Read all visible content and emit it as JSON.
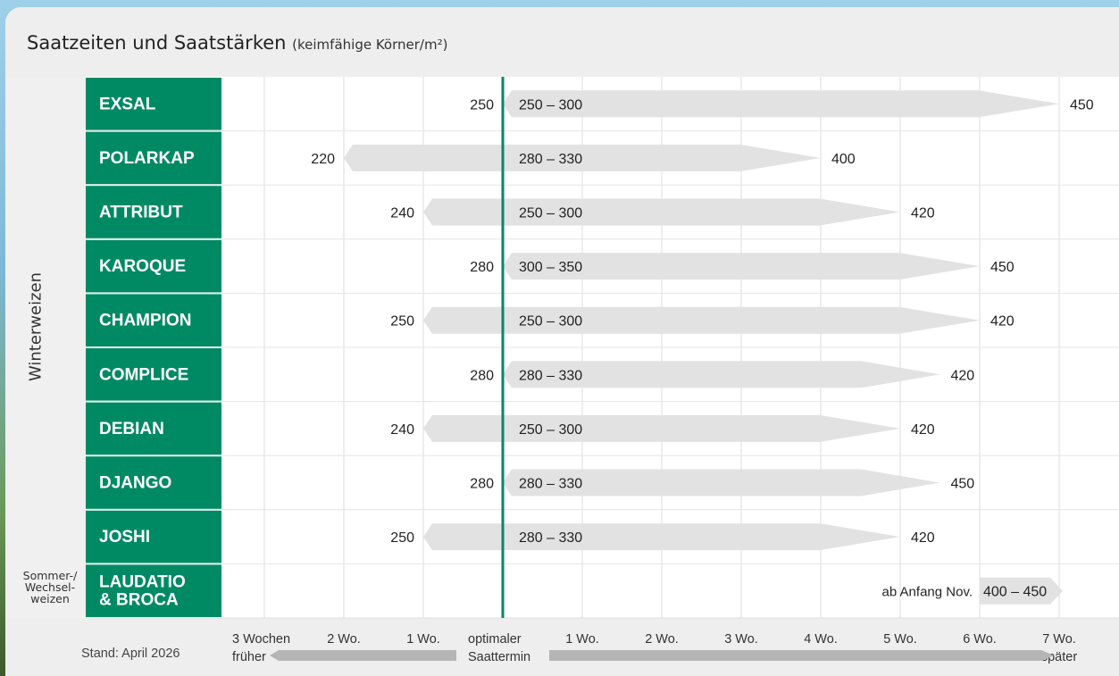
{
  "title": "Saatzeiten und Saatstärken",
  "subtitle": "(keimfähige Körner/m²)",
  "group_labels": {
    "winter": "Winterweizen",
    "sommer": "Sommer-/\nWechsel-\nweizen"
  },
  "stand": "Stand: April 2026",
  "colors": {
    "variety_box": "#008a64",
    "optimal_line": "#008a64",
    "range_bar": "#e2e2e2",
    "axis_arrow": "#b5b5b5",
    "title_bar": "#eeeeee",
    "gridline": "#dcdcdc"
  },
  "chart_data": {
    "type": "bar",
    "description_axis_unit": "Wochen relativ zum optimalen Saattermin",
    "x_ticks": [
      {
        "value": -3,
        "label": "3 Wochen\nfrüher"
      },
      {
        "value": -2,
        "label": "2 Wo."
      },
      {
        "value": -1,
        "label": "1 Wo."
      },
      {
        "value": 0,
        "label": "optimaler\nSaattermin"
      },
      {
        "value": 1,
        "label": "1 Wo."
      },
      {
        "value": 2,
        "label": "2 Wo."
      },
      {
        "value": 3,
        "label": "3 Wo."
      },
      {
        "value": 4,
        "label": "4 Wo."
      },
      {
        "value": 5,
        "label": "5 Wo."
      },
      {
        "value": 6,
        "label": "6 Wo."
      },
      {
        "value": 7,
        "label": "7 Wo.\nspäter"
      }
    ],
    "xlim": [
      -3.5,
      7.5
    ],
    "rows": [
      {
        "name": "EXSAL",
        "start": 0,
        "end": 7,
        "start_label": "250",
        "mid_label": "250 – 300",
        "end_label": "450"
      },
      {
        "name": "POLARKAP",
        "start": -2,
        "end": 4,
        "start_label": "220",
        "mid_label": "280 – 330",
        "end_label": "400"
      },
      {
        "name": "ATTRIBUT",
        "start": -1,
        "end": 5,
        "start_label": "240",
        "mid_label": "250 – 300",
        "end_label": "420"
      },
      {
        "name": "KAROQUE",
        "start": 0,
        "end": 6,
        "start_label": "280",
        "mid_label": "300 – 350",
        "end_label": "450"
      },
      {
        "name": "CHAMPION",
        "start": -1,
        "end": 6,
        "start_label": "250",
        "mid_label": "250 – 300",
        "end_label": "420"
      },
      {
        "name": "COMPLICE",
        "start": 0,
        "end": 5.5,
        "start_label": "280",
        "mid_label": "280 – 330",
        "end_label": "420"
      },
      {
        "name": "DEBIAN",
        "start": -1,
        "end": 5,
        "start_label": "240",
        "mid_label": "250 – 300",
        "end_label": "420"
      },
      {
        "name": "DJANGO",
        "start": 0,
        "end": 5.5,
        "start_label": "280",
        "mid_label": "280 – 330",
        "end_label": "450"
      },
      {
        "name": "JOSHI",
        "start": -1,
        "end": 5,
        "start_label": "250",
        "mid_label": "280 – 330",
        "end_label": "420"
      },
      {
        "name": "LAUDATIO\n& BROCA",
        "start": 6,
        "end": 7,
        "pre_label": "ab Anfang Nov.",
        "mid_label": "400 – 450"
      }
    ]
  }
}
